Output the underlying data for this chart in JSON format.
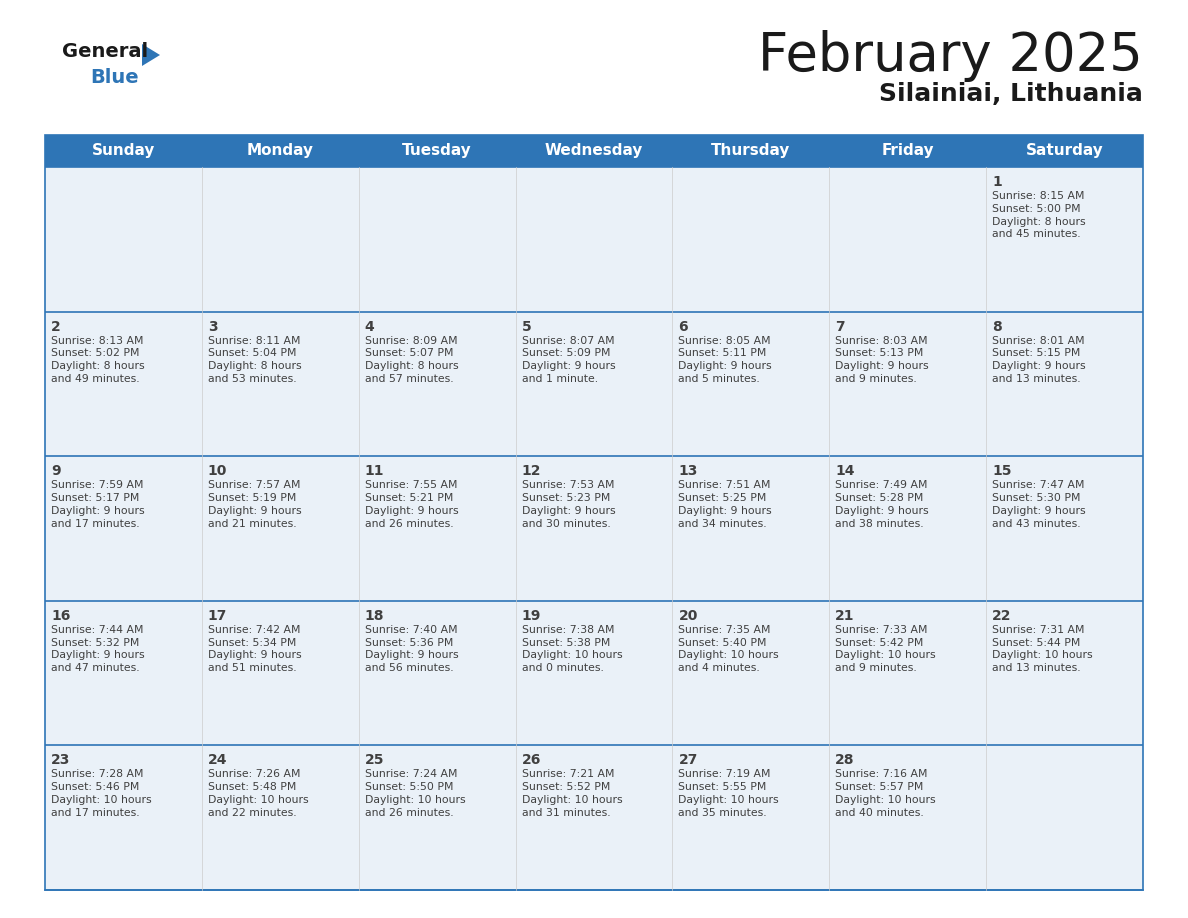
{
  "title": "February 2025",
  "subtitle": "Silainiai, Lithuania",
  "header_bg_color": "#2e75b6",
  "header_text_color": "#ffffff",
  "cell_bg_color": "#eaf1f8",
  "cell_bg_white": "#ffffff",
  "row_line_color": "#2e75b6",
  "text_color": "#404040",
  "days_of_week": [
    "Sunday",
    "Monday",
    "Tuesday",
    "Wednesday",
    "Thursday",
    "Friday",
    "Saturday"
  ],
  "calendar": [
    [
      null,
      null,
      null,
      null,
      null,
      null,
      {
        "day": "1",
        "sunrise": "8:15 AM",
        "sunset": "5:00 PM",
        "daylight": "8 hours\nand 45 minutes."
      }
    ],
    [
      {
        "day": "2",
        "sunrise": "8:13 AM",
        "sunset": "5:02 PM",
        "daylight": "8 hours\nand 49 minutes."
      },
      {
        "day": "3",
        "sunrise": "8:11 AM",
        "sunset": "5:04 PM",
        "daylight": "8 hours\nand 53 minutes."
      },
      {
        "day": "4",
        "sunrise": "8:09 AM",
        "sunset": "5:07 PM",
        "daylight": "8 hours\nand 57 minutes."
      },
      {
        "day": "5",
        "sunrise": "8:07 AM",
        "sunset": "5:09 PM",
        "daylight": "9 hours\nand 1 minute."
      },
      {
        "day": "6",
        "sunrise": "8:05 AM",
        "sunset": "5:11 PM",
        "daylight": "9 hours\nand 5 minutes."
      },
      {
        "day": "7",
        "sunrise": "8:03 AM",
        "sunset": "5:13 PM",
        "daylight": "9 hours\nand 9 minutes."
      },
      {
        "day": "8",
        "sunrise": "8:01 AM",
        "sunset": "5:15 PM",
        "daylight": "9 hours\nand 13 minutes."
      }
    ],
    [
      {
        "day": "9",
        "sunrise": "7:59 AM",
        "sunset": "5:17 PM",
        "daylight": "9 hours\nand 17 minutes."
      },
      {
        "day": "10",
        "sunrise": "7:57 AM",
        "sunset": "5:19 PM",
        "daylight": "9 hours\nand 21 minutes."
      },
      {
        "day": "11",
        "sunrise": "7:55 AM",
        "sunset": "5:21 PM",
        "daylight": "9 hours\nand 26 minutes."
      },
      {
        "day": "12",
        "sunrise": "7:53 AM",
        "sunset": "5:23 PM",
        "daylight": "9 hours\nand 30 minutes."
      },
      {
        "day": "13",
        "sunrise": "7:51 AM",
        "sunset": "5:25 PM",
        "daylight": "9 hours\nand 34 minutes."
      },
      {
        "day": "14",
        "sunrise": "7:49 AM",
        "sunset": "5:28 PM",
        "daylight": "9 hours\nand 38 minutes."
      },
      {
        "day": "15",
        "sunrise": "7:47 AM",
        "sunset": "5:30 PM",
        "daylight": "9 hours\nand 43 minutes."
      }
    ],
    [
      {
        "day": "16",
        "sunrise": "7:44 AM",
        "sunset": "5:32 PM",
        "daylight": "9 hours\nand 47 minutes."
      },
      {
        "day": "17",
        "sunrise": "7:42 AM",
        "sunset": "5:34 PM",
        "daylight": "9 hours\nand 51 minutes."
      },
      {
        "day": "18",
        "sunrise": "7:40 AM",
        "sunset": "5:36 PM",
        "daylight": "9 hours\nand 56 minutes."
      },
      {
        "day": "19",
        "sunrise": "7:38 AM",
        "sunset": "5:38 PM",
        "daylight": "10 hours\nand 0 minutes."
      },
      {
        "day": "20",
        "sunrise": "7:35 AM",
        "sunset": "5:40 PM",
        "daylight": "10 hours\nand 4 minutes."
      },
      {
        "day": "21",
        "sunrise": "7:33 AM",
        "sunset": "5:42 PM",
        "daylight": "10 hours\nand 9 minutes."
      },
      {
        "day": "22",
        "sunrise": "7:31 AM",
        "sunset": "5:44 PM",
        "daylight": "10 hours\nand 13 minutes."
      }
    ],
    [
      {
        "day": "23",
        "sunrise": "7:28 AM",
        "sunset": "5:46 PM",
        "daylight": "10 hours\nand 17 minutes."
      },
      {
        "day": "24",
        "sunrise": "7:26 AM",
        "sunset": "5:48 PM",
        "daylight": "10 hours\nand 22 minutes."
      },
      {
        "day": "25",
        "sunrise": "7:24 AM",
        "sunset": "5:50 PM",
        "daylight": "10 hours\nand 26 minutes."
      },
      {
        "day": "26",
        "sunrise": "7:21 AM",
        "sunset": "5:52 PM",
        "daylight": "10 hours\nand 31 minutes."
      },
      {
        "day": "27",
        "sunrise": "7:19 AM",
        "sunset": "5:55 PM",
        "daylight": "10 hours\nand 35 minutes."
      },
      {
        "day": "28",
        "sunrise": "7:16 AM",
        "sunset": "5:57 PM",
        "daylight": "10 hours\nand 40 minutes."
      },
      null
    ]
  ]
}
